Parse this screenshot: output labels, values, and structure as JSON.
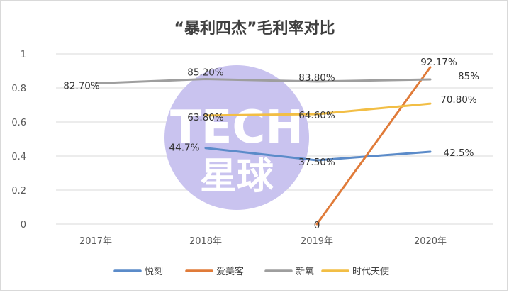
{
  "chart_data": {
    "type": "line",
    "title": "“暴利四杰”毛利率对比",
    "categories": [
      "2017年",
      "2018年",
      "2019年",
      "2020年"
    ],
    "ylim": [
      0,
      1
    ],
    "yticks": [
      "0",
      "0.2",
      "0.4",
      "0.6",
      "0.8",
      "1"
    ],
    "grid": true,
    "legend_position": "bottom",
    "series": [
      {
        "name": "悦刻",
        "color": "#5B8BC9",
        "values": [
          null,
          0.447,
          0.375,
          0.425
        ],
        "labels": [
          null,
          "44.7%",
          "37.50%",
          "42.5%"
        ]
      },
      {
        "name": "爱美客",
        "color": "#E07B39",
        "values": [
          null,
          null,
          0,
          0.9217
        ],
        "labels": [
          null,
          null,
          "0",
          "92.17%"
        ]
      },
      {
        "name": "新氧",
        "color": "#9E9E9E",
        "values": [
          0.827,
          0.852,
          0.838,
          0.85
        ],
        "labels": [
          "82.70%",
          "85.20%",
          "83.80%",
          "85%"
        ]
      },
      {
        "name": "时代天使",
        "color": "#F2BE45",
        "values": [
          null,
          0.638,
          0.646,
          0.708
        ],
        "labels": [
          null,
          "63.80%",
          "64.60%",
          "70.80%"
        ]
      }
    ]
  },
  "watermark": {
    "line1": "TECH",
    "line2": "星球",
    "color": "#C9C3EF"
  }
}
